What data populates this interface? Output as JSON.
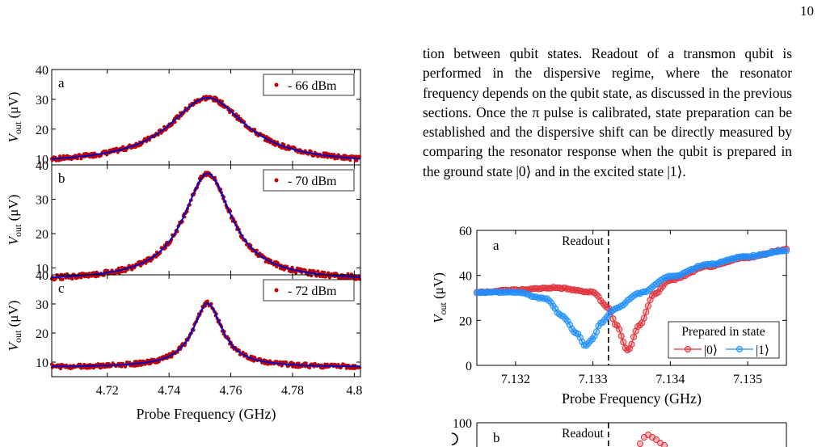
{
  "page_number": "10",
  "body_text": "tion between qubit states. Readout of a transmon qubit is performed in the dispersive regime, where the resonator frequency depends on the qubit state, as discussed in the previous sections. Once the π pulse is calibrated, state preparation can be established and the dispersive shift can be directly measured by comparing the resonator response when the qubit is prepared in the ground state |0⟩ and in the excited state |1⟩.",
  "colors": {
    "data_red": "#c00000",
    "fit_blue": "#0000cc",
    "state0": "#e0303a",
    "state1": "#1e90ff"
  },
  "chart_data": [
    {
      "type": "scatter",
      "panel_label": "a",
      "legend_label": "- 66 dBm",
      "ylabel": "V_out (μV)",
      "xlim": [
        4.702,
        4.802
      ],
      "ylim": [
        8,
        40
      ],
      "yticks": [
        10,
        20,
        30,
        40
      ],
      "series": [
        {
          "style": "lorentzian",
          "center": 4.7525,
          "fwhm": 0.03,
          "peak": 30.5,
          "baseline": 8.2
        }
      ]
    },
    {
      "type": "scatter",
      "panel_label": "b",
      "legend_label": "- 70 dBm",
      "ylabel": "V_out (μV)",
      "xlim": [
        4.702,
        4.802
      ],
      "ylim": [
        8,
        40
      ],
      "yticks": [
        10,
        20,
        30,
        40
      ],
      "series": [
        {
          "style": "lorentzian",
          "center": 4.7525,
          "fwhm": 0.019,
          "peak": 37.5,
          "baseline": 6.2
        }
      ]
    },
    {
      "type": "scatter",
      "panel_label": "c",
      "legend_label": "- 72 dBm",
      "ylabel": "V_out (μV)",
      "xlabel": "Probe Frequency (GHz)",
      "xlim": [
        4.702,
        4.802
      ],
      "ylim": [
        5,
        40
      ],
      "xticks": [
        4.72,
        4.74,
        4.76,
        4.78,
        4.8
      ],
      "xticklabels": [
        "4.72",
        "4.74",
        "4.76",
        "4.78",
        "4.8"
      ],
      "yticks": [
        10,
        20,
        30,
        40
      ],
      "series": [
        {
          "style": "lorentzian",
          "center": 4.7525,
          "fwhm": 0.0115,
          "peak": 30.2,
          "baseline": 8.2
        }
      ]
    },
    {
      "type": "line",
      "panel_label": "a",
      "annotation": "Readout",
      "readout_x": 7.1332,
      "ylabel": "V_out (μV)",
      "xlabel": "Probe Frequency (GHz)",
      "xlim": [
        7.1315,
        7.1355
      ],
      "ylim": [
        0,
        60
      ],
      "xticks": [
        7.132,
        7.133,
        7.134,
        7.135
      ],
      "xticklabels": [
        "7.132",
        "7.133",
        "7.134",
        "7.135"
      ],
      "yticks": [
        0,
        20,
        40,
        60
      ],
      "legend_title": "Prepared in state",
      "series": [
        {
          "name": "|0⟩",
          "x": [
            7.1315,
            7.132,
            7.1325,
            7.133,
            7.1332,
            7.1333,
            7.13345,
            7.1336,
            7.1338,
            7.134,
            7.1345,
            7.135,
            7.1355
          ],
          "y": [
            32.5,
            33.5,
            34.5,
            32.5,
            25.5,
            18,
            6.5,
            18,
            32,
            38,
            44,
            48,
            51.5
          ]
        },
        {
          "name": "|1⟩",
          "x": [
            7.1315,
            7.132,
            7.1324,
            7.1326,
            7.1328,
            7.1329,
            7.133,
            7.1331,
            7.1333,
            7.1336,
            7.134,
            7.1345,
            7.135,
            7.1355
          ],
          "y": [
            32.5,
            32.5,
            29.5,
            22,
            14,
            8.5,
            12,
            19,
            25.5,
            32,
            39.5,
            45,
            48.5,
            51
          ]
        }
      ]
    },
    {
      "type": "line",
      "panel_label": "b",
      "annotation": "Readout",
      "yticks": [
        100
      ],
      "ylim": [
        0,
        100
      ],
      "xlim": [
        7.1315,
        7.1355
      ]
    }
  ]
}
